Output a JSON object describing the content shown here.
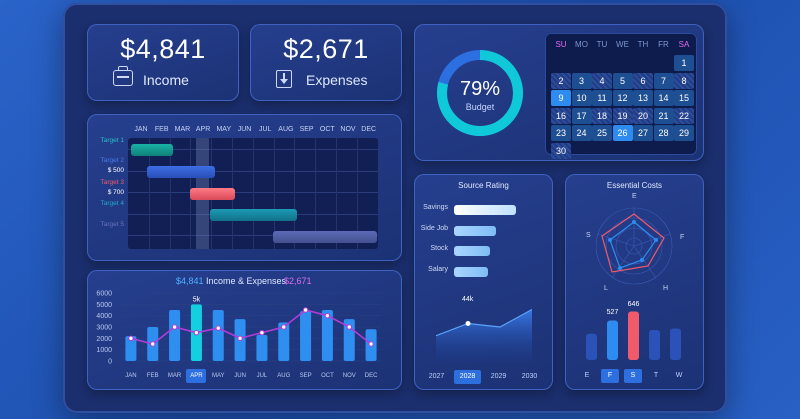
{
  "colors": {
    "accent": "#2e8cf0",
    "teal": "#10c9d8",
    "red": "#f05a6a",
    "purple": "#b13cd8"
  },
  "income": {
    "value": "$4,841",
    "label": "Income",
    "icon": "wallet-icon"
  },
  "expenses": {
    "value": "$2,671",
    "label": "Expenses",
    "icon": "download-icon"
  },
  "budget": {
    "percent": "79%",
    "label": "Budget",
    "fraction": 0.79
  },
  "calendar": {
    "weekdays": [
      "SU",
      "MO",
      "TU",
      "WE",
      "TH",
      "FR",
      "SA"
    ],
    "days": [
      "1",
      "2",
      "3",
      "4",
      "5",
      "6",
      "7",
      "8",
      "9",
      "10",
      "11",
      "12",
      "13",
      "14",
      "15",
      "16",
      "17",
      "18",
      "19",
      "20",
      "21",
      "22",
      "23",
      "24",
      "25",
      "26",
      "27",
      "28",
      "29",
      "30"
    ],
    "selected": [
      "9",
      "26"
    ]
  },
  "gantt": {
    "months": [
      "JAN",
      "FEB",
      "MAR",
      "APR",
      "MAY",
      "JUN",
      "JUL",
      "AUG",
      "SEP",
      "OCT",
      "NOV",
      "DEC"
    ],
    "targets": [
      {
        "label": "Target 1",
        "value": ""
      },
      {
        "label": "Target 2",
        "value": "$ 500"
      },
      {
        "label": "Target 3",
        "value": "$ 700"
      },
      {
        "label": "Target 4",
        "value": ""
      },
      {
        "label": "Target 5",
        "value": ""
      }
    ]
  },
  "income_expenses": {
    "title": "Income & Expenses",
    "income_total": "$4,841",
    "expense_total": "$2,671",
    "peak_label": "5k"
  },
  "source_rating": {
    "title": "Source Rating",
    "items": [
      {
        "label": "Savings",
        "value": 1.0
      },
      {
        "label": "Side Job",
        "value": 0.68
      },
      {
        "label": "Stock",
        "value": 0.58
      },
      {
        "label": "Salary",
        "value": 0.55
      }
    ],
    "area_label": "44k",
    "years": [
      "2027",
      "2028",
      "2029",
      "2030"
    ],
    "selected_year": "2028"
  },
  "essential_costs": {
    "title": "Essential Costs",
    "radar_axes": [
      "E",
      "F",
      "H",
      "L",
      "S"
    ],
    "bar_labels": [
      "527",
      "646"
    ],
    "days": [
      "E",
      "F",
      "S",
      "T",
      "W"
    ],
    "selected_days": [
      "F",
      "S"
    ]
  },
  "chart_data": [
    {
      "type": "bar",
      "title": "Income & Expenses",
      "categories": [
        "JAN",
        "FEB",
        "MAR",
        "APR",
        "MAY",
        "JUN",
        "JUL",
        "AUG",
        "SEP",
        "OCT",
        "NOV",
        "DEC"
      ],
      "yticks": [
        "6000",
        "5000",
        "4000",
        "3000",
        "2000",
        "1000",
        "0"
      ],
      "ylim": [
        0,
        6000
      ],
      "series": [
        {
          "name": "Income",
          "type": "bar",
          "values": [
            2200,
            3000,
            4500,
            5000,
            4500,
            3700,
            2300,
            3400,
            4400,
            4500,
            3700,
            2800
          ]
        },
        {
          "name": "Expenses",
          "type": "line",
          "values": [
            2000,
            1500,
            3000,
            2500,
            2900,
            2000,
            2500,
            3000,
            4500,
            4000,
            3000,
            1500
          ]
        }
      ]
    },
    {
      "type": "area",
      "title": "Source Rating",
      "x": [
        "2027",
        "2028",
        "2029",
        "2030"
      ],
      "values": [
        30,
        44,
        40,
        60
      ],
      "ylim": [
        0,
        80
      ]
    },
    {
      "type": "bar",
      "title": "Essential Costs",
      "categories": [
        "E",
        "F",
        "S",
        "T",
        "W"
      ],
      "values": [
        350,
        527,
        646,
        400,
        420
      ],
      "ylim": [
        0,
        800
      ]
    }
  ]
}
